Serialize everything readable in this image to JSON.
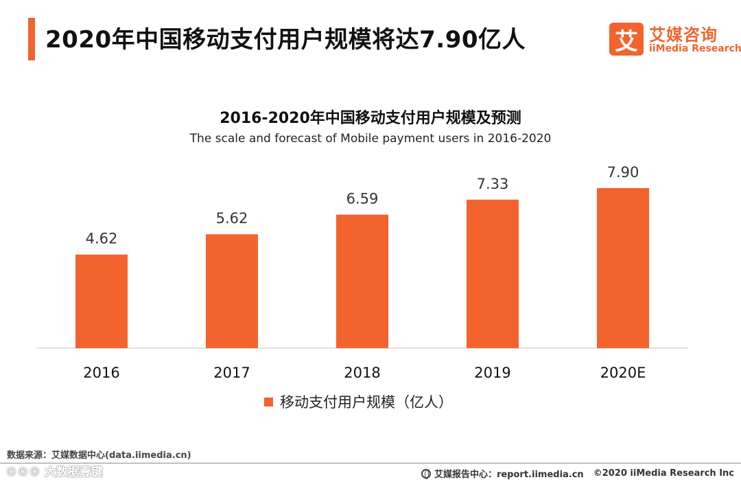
{
  "header": {
    "title": "2020年中国移动支付用户规模将达7.90亿人"
  },
  "logo": {
    "mark": "艾",
    "name_cn": "艾媒咨询",
    "name_en": "iiMedia Research"
  },
  "chart_data": {
    "type": "bar",
    "title": "2016-2020年中国移动支付用户规模及预测",
    "subtitle": "The scale and forecast of Mobile payment users in 2016-2020",
    "categories": [
      "2016",
      "2017",
      "2018",
      "2019",
      "2020E"
    ],
    "values": [
      4.62,
      5.62,
      6.59,
      7.33,
      7.9
    ],
    "value_labels": [
      "4.62",
      "5.62",
      "6.59",
      "7.33",
      "7.90"
    ],
    "series": [
      {
        "name": "移动支付用户规模（亿人）",
        "values": [
          4.62,
          5.62,
          6.59,
          7.33,
          7.9
        ]
      }
    ],
    "xlabel": "",
    "ylabel": "",
    "ylim": [
      0,
      10
    ],
    "grid": false,
    "legend": "bottom",
    "bar_color": "#f3632e"
  },
  "footer": {
    "source": "数据来源：艾媒数据中心(data.iimedia.cn)",
    "watermark": "©®® 大数据壹键",
    "report_center": "艾媒报告中心：report.iimedia.cn",
    "copyright": "©2020  iiMedia Research  Inc"
  }
}
